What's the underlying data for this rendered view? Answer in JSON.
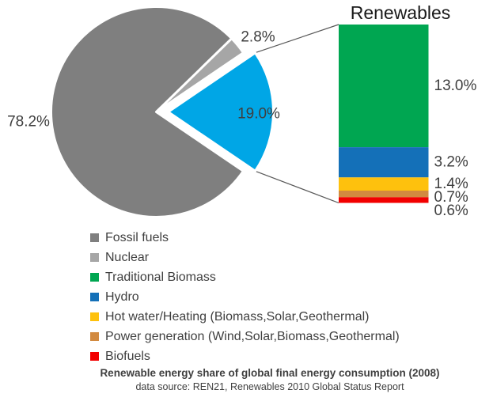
{
  "chart_data": {
    "type": "pie",
    "title": "Renewable energy share of global final energy consumption (2008)",
    "source_note": "data source: REN21, Renewables 2010 Global Status Report",
    "pie": {
      "slices": [
        {
          "label": "Fossil fuels",
          "value": 78.2,
          "display": "78.2%",
          "color": "#7F7F7F",
          "exploded": false
        },
        {
          "label": "Nuclear",
          "value": 2.8,
          "display": "2.8%",
          "color": "#A6A6A6",
          "exploded": false
        },
        {
          "label": "Renewables",
          "value": 19.0,
          "display": "19.0%",
          "color": "#00A6E6",
          "exploded": true
        }
      ]
    },
    "bar": {
      "title": "Renewables",
      "segments": [
        {
          "label": "Traditional Biomass",
          "value": 13.0,
          "display": "13.0%",
          "color": "#00A651"
        },
        {
          "label": "Hydro",
          "value": 3.2,
          "display": "3.2%",
          "color": "#1470B8"
        },
        {
          "label": "Hot water/Heating (Biomass,Solar,Geothermal)",
          "value": 1.4,
          "display": "1.4%",
          "color": "#FEC10D"
        },
        {
          "label": "Power generation (Wind,Solar,Biomass,Geothermal)",
          "value": 0.7,
          "display": "0.7%",
          "color": "#D28A40"
        },
        {
          "label": "Biofuels",
          "value": 0.6,
          "display": "0.6%",
          "color": "#F20000"
        }
      ]
    },
    "legend": [
      {
        "label": "Fossil fuels",
        "color": "#7F7F7F"
      },
      {
        "label": "Nuclear",
        "color": "#A6A6A6"
      },
      {
        "label": "Traditional Biomass",
        "color": "#00A651"
      },
      {
        "label": "Hydro",
        "color": "#1470B8"
      },
      {
        "label": "Hot water/Heating (Biomass,Solar,Geothermal)",
        "color": "#FEC10D"
      },
      {
        "label": "Power generation (Wind,Solar,Biomass,Geothermal)",
        "color": "#D28A40"
      },
      {
        "label": "Biofuels",
        "color": "#F20000"
      }
    ],
    "legend_position": "bottom-left",
    "grid": false,
    "connector_color": "#595959",
    "label_color": "#3F3F3F"
  }
}
